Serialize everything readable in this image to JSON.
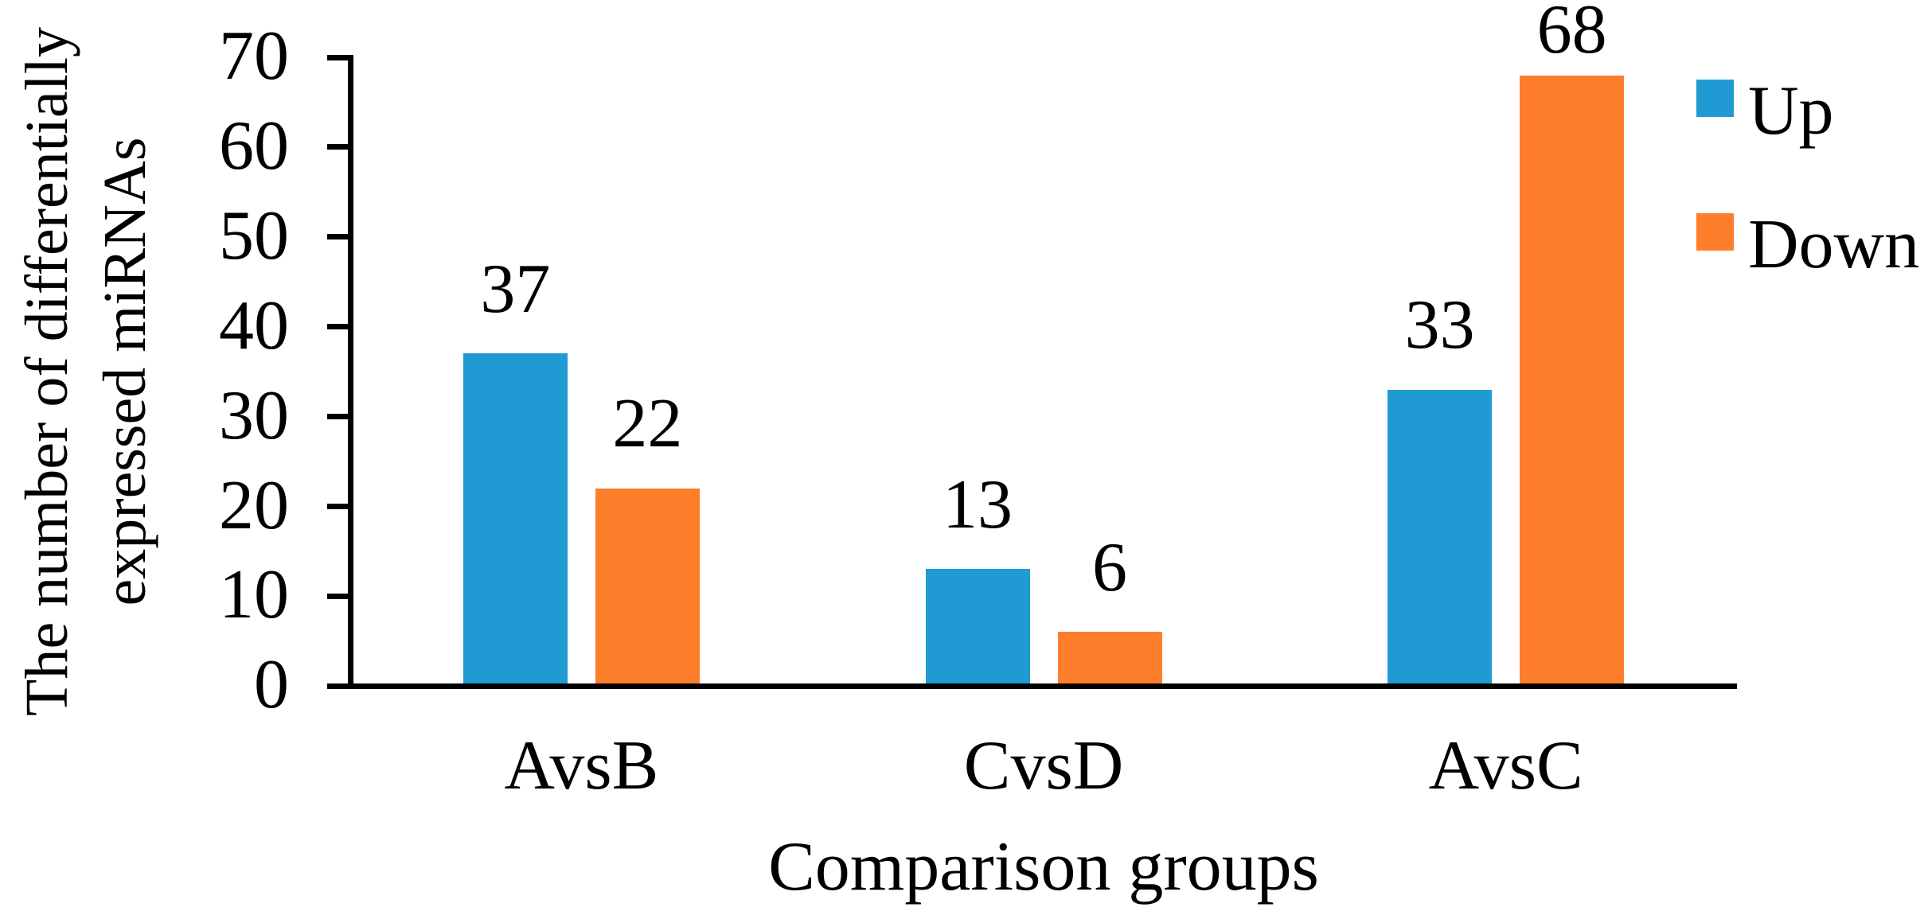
{
  "figure": {
    "background": "#ffffff",
    "axis_color": "#000000",
    "text_color": "#000000"
  },
  "chart_data": {
    "type": "bar",
    "title": "",
    "xlabel": "Comparison groups",
    "ylabel": "The number of differentially expressed miRNAs",
    "ylabel_lines": [
      "The number of differentially",
      "expressed miRNAs"
    ],
    "categories": [
      "AvsB",
      "CvsD",
      "AvsC"
    ],
    "series": [
      {
        "name": "Up",
        "color": "#1F9AD3",
        "values": [
          37,
          13,
          33
        ]
      },
      {
        "name": "Down",
        "color": "#FF7E2B",
        "values": [
          22,
          6,
          68
        ]
      }
    ],
    "value_labels": {
      "Up": [
        "37",
        "13",
        "33"
      ],
      "Down": [
        "22",
        "6",
        "68"
      ]
    },
    "ylim": [
      0,
      70
    ],
    "yticks": [
      0,
      10,
      20,
      30,
      40,
      50,
      60,
      70
    ],
    "grid": false,
    "legend_position": "top-right",
    "legend": [
      {
        "label": "Up",
        "color": "#1F9AD3"
      },
      {
        "label": "Down",
        "color": "#FF7E2B"
      }
    ]
  }
}
